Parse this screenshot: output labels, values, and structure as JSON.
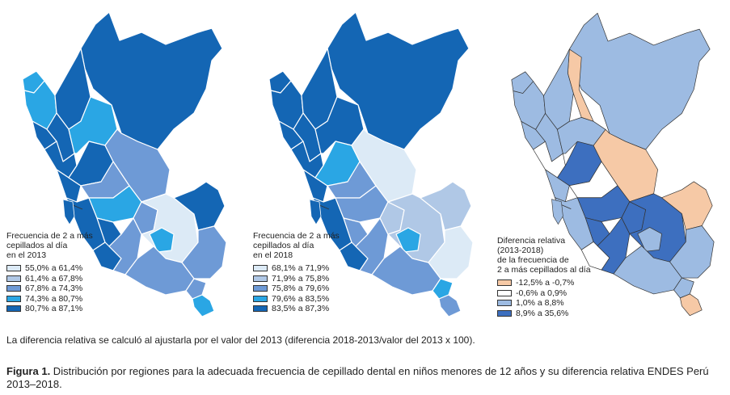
{
  "maps": [
    {
      "legend_title": [
        "Frecuencia de 2 a más",
        "cepillados al día",
        "en el 2013"
      ],
      "legend": [
        {
          "label": "55,0% a 61,4%",
          "color": "#dceaf6"
        },
        {
          "label": "61,4% a 67,8%",
          "color": "#b0c8e6"
        },
        {
          "label": "67,8% a 74,3%",
          "color": "#6e9ad6"
        },
        {
          "label": "74,3% a 80,7%",
          "color": "#2aa6e4"
        },
        {
          "label": "80,7% a 87,1%",
          "color": "#1466b4"
        }
      ]
    },
    {
      "legend_title": [
        "Frecuencia de 2 a más",
        "cepillados al día",
        "en el 2018"
      ],
      "legend": [
        {
          "label": "68,1% a 71,9%",
          "color": "#dceaf6"
        },
        {
          "label": "71,9% a 75,8%",
          "color": "#b0c8e6"
        },
        {
          "label": "75,8% a 79,6%",
          "color": "#6e9ad6"
        },
        {
          "label": "79,6% a 83,5%",
          "color": "#2aa6e4"
        },
        {
          "label": "83,5% a 87,3%",
          "color": "#1466b4"
        }
      ]
    },
    {
      "legend_title": [
        "Diferencia relativa",
        "(2013-2018)",
        "de la frecuencia de",
        "2 a más cepillados al día"
      ],
      "legend": [
        {
          "label": "-12,5% a -0,7%",
          "color": "#f6c9a6"
        },
        {
          "label": "-0,6% a 0,9%",
          "color": "#ffffff"
        },
        {
          "label": "1,0% a 8,8%",
          "color": "#9dbbe2"
        },
        {
          "label": "8,9% a 35,6%",
          "color": "#3d6fbf"
        }
      ]
    }
  ],
  "note": "La diferencia relativa se calculó al ajustarla por el valor del 2013 (diferencia 2018-2013/valor del 2013 x 100).",
  "caption": {
    "label": "Figura 1.",
    "text": " Distribución por regiones para la adecuada frecuencia de cepillado dental en niños menores de 12 años y su diferencia relativa ENDES Perú 2013–2018."
  }
}
